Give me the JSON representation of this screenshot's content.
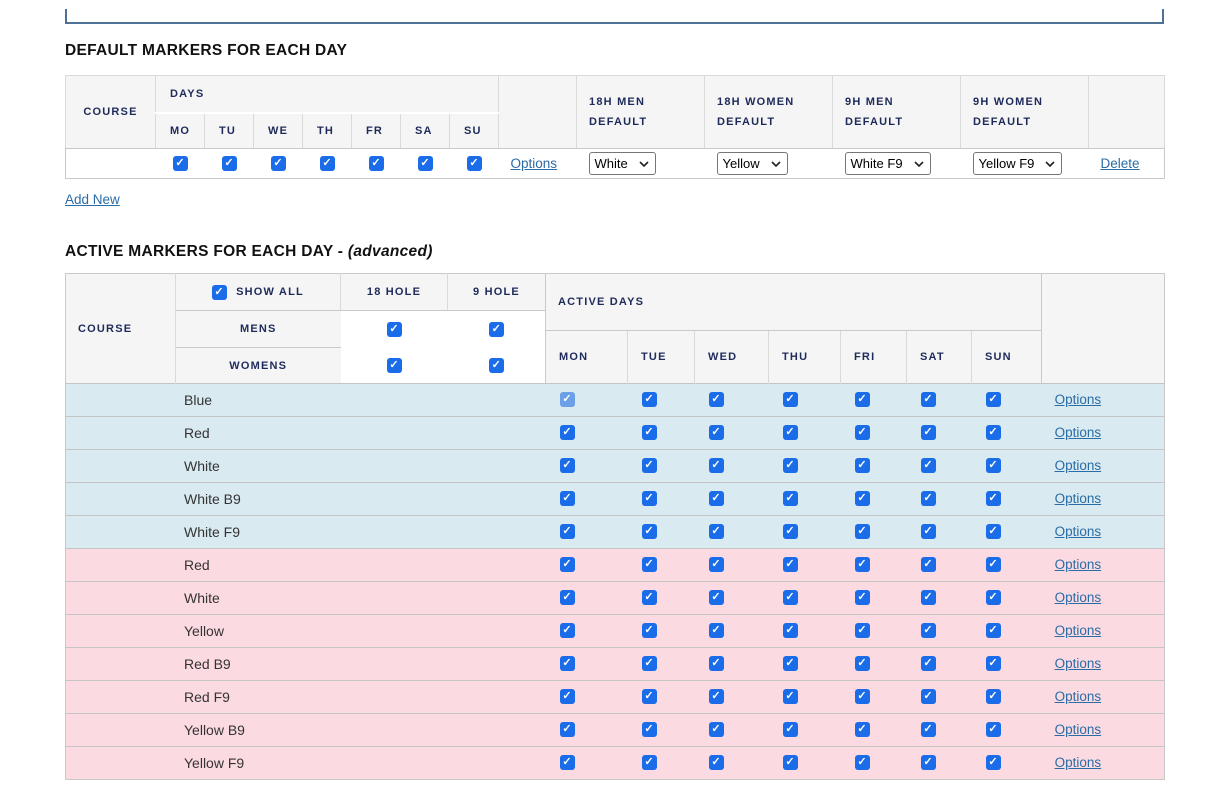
{
  "theme": {
    "header_bg": "#f5f5f5",
    "header_text": "#1e2a5a",
    "title_text": "#111111",
    "body_text": "#333333",
    "link": "#2a6ca6",
    "checkbox": "#1a6ce8",
    "checkbox_disabled": "#6b9fe6",
    "row_blue": "#d9eaf1",
    "row_pink": "#fcdae1",
    "border_strong": "#c9c9c9",
    "border_light": "#d9d9d9",
    "top_box_border": "#4e7296",
    "select_border": "#767676"
  },
  "default_markers": {
    "title": "DEFAULT MARKERS FOR EACH DAY",
    "columns": {
      "course": "COURSE",
      "days_group": "DAYS",
      "days": [
        "MO",
        "TU",
        "WE",
        "TH",
        "FR",
        "SA",
        "SU"
      ],
      "men18": "18H MEN\nDEFAULT",
      "women18": "18H WOMEN\nDEFAULT",
      "men9": "9H MEN\nDEFAULT",
      "women9": "9H WOMEN\nDEFAULT"
    },
    "row": {
      "course": "",
      "days_checked": [
        true,
        true,
        true,
        true,
        true,
        true,
        true
      ],
      "options_label": "Options",
      "men18_value": "White",
      "women18_value": "Yellow",
      "men9_value": "White F9",
      "women9_value": "Yellow F9",
      "delete_label": "Delete"
    },
    "add_new_label": "Add New"
  },
  "active_markers": {
    "title_main": "ACTIVE MARKERS FOR EACH DAY - ",
    "title_suffix": "(advanced)",
    "header": {
      "course": "COURSE",
      "show_all": "SHOW ALL",
      "show_all_checked": true,
      "mens": "MENS",
      "womens": "WOMENS",
      "hole18": "18 HOLE",
      "hole9": "9 HOLE",
      "mens_18_checked": true,
      "mens_9_checked": true,
      "womens_18_checked": true,
      "womens_9_checked": true,
      "active_days": "ACTIVE DAYS",
      "days": [
        "MON",
        "TUE",
        "WED",
        "THU",
        "FRI",
        "SAT",
        "SUN"
      ]
    },
    "options_label": "Options",
    "rows": [
      {
        "course": "Blue",
        "tone": "blue",
        "days_checked": [
          true,
          true,
          true,
          true,
          true,
          true,
          true
        ],
        "disabled_days": [
          0
        ]
      },
      {
        "course": "Red",
        "tone": "blue",
        "days_checked": [
          true,
          true,
          true,
          true,
          true,
          true,
          true
        ],
        "disabled_days": []
      },
      {
        "course": "White",
        "tone": "blue",
        "days_checked": [
          true,
          true,
          true,
          true,
          true,
          true,
          true
        ],
        "disabled_days": []
      },
      {
        "course": "White B9",
        "tone": "blue",
        "days_checked": [
          true,
          true,
          true,
          true,
          true,
          true,
          true
        ],
        "disabled_days": []
      },
      {
        "course": "White F9",
        "tone": "blue",
        "days_checked": [
          true,
          true,
          true,
          true,
          true,
          true,
          true
        ],
        "disabled_days": []
      },
      {
        "course": "Red",
        "tone": "pink",
        "days_checked": [
          true,
          true,
          true,
          true,
          true,
          true,
          true
        ],
        "disabled_days": []
      },
      {
        "course": "White",
        "tone": "pink",
        "days_checked": [
          true,
          true,
          true,
          true,
          true,
          true,
          true
        ],
        "disabled_days": []
      },
      {
        "course": "Yellow",
        "tone": "pink",
        "days_checked": [
          true,
          true,
          true,
          true,
          true,
          true,
          true
        ],
        "disabled_days": []
      },
      {
        "course": "Red B9",
        "tone": "pink",
        "days_checked": [
          true,
          true,
          true,
          true,
          true,
          true,
          true
        ],
        "disabled_days": []
      },
      {
        "course": "Red F9",
        "tone": "pink",
        "days_checked": [
          true,
          true,
          true,
          true,
          true,
          true,
          true
        ],
        "disabled_days": []
      },
      {
        "course": "Yellow B9",
        "tone": "pink",
        "days_checked": [
          true,
          true,
          true,
          true,
          true,
          true,
          true
        ],
        "disabled_days": []
      },
      {
        "course": "Yellow F9",
        "tone": "pink",
        "days_checked": [
          true,
          true,
          true,
          true,
          true,
          true,
          true
        ],
        "disabled_days": []
      }
    ]
  }
}
